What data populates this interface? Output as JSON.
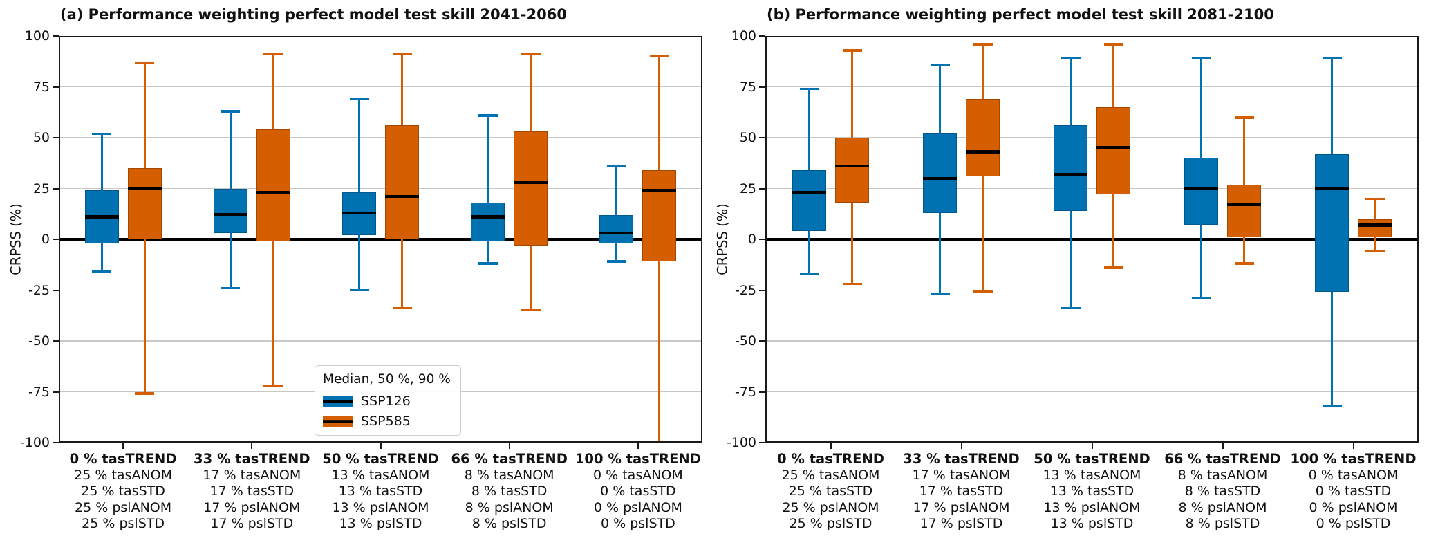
{
  "figure": {
    "background": "#ffffff"
  },
  "colors": {
    "ssp126": "#0072B2",
    "ssp585": "#D55E00",
    "median_line": "#000000",
    "zero_line": "#000000",
    "gridline": "#c8c8c8",
    "spine": "#1a1a1a"
  },
  "legend": {
    "title": "Median, 50 %, 90 %",
    "entries": [
      {
        "label": "SSP126",
        "color": "#0072B2"
      },
      {
        "label": "SSP585",
        "color": "#D55E00"
      }
    ]
  },
  "axes": {
    "ylabel": "CRPSS (%)",
    "yticks": [
      100,
      75,
      50,
      25,
      0,
      -25,
      -50,
      -75,
      -100
    ],
    "ylim": [
      -100,
      100
    ],
    "grid": "horizontal"
  },
  "group_labels": [
    [
      "0 % tasTREND",
      "25 % tasANOM",
      "25 % tasSTD",
      "25 % pslANOM",
      "25 % pslSTD"
    ],
    [
      "33 % tasTREND",
      "17 % tasANOM",
      "17 % tasSTD",
      "17 % pslANOM",
      "17 % pslSTD"
    ],
    [
      "50 % tasTREND",
      "13 % tasANOM",
      "13 % tasSTD",
      "13 % pslANOM",
      "13 % pslSTD"
    ],
    [
      "66 % tasTREND",
      "8 % tasANOM",
      "8 % tasSTD",
      "8 % pslANOM",
      "8 % pslSTD"
    ],
    [
      "100 % tasTREND",
      "0 % tasANOM",
      "0 % tasSTD",
      "0 % pslANOM",
      "0 % pslSTD"
    ]
  ],
  "chart_data": [
    {
      "panel": "a",
      "type": "box",
      "title": "(a) Performance weighting perfect model test skill 2041-2060",
      "ylabel": "CRPSS (%)",
      "ylim": [
        -100,
        100
      ],
      "categories": [
        "0 % tasTREND",
        "33 % tasTREND",
        "50 % tasTREND",
        "66 % tasTREND",
        "100 % tasTREND"
      ],
      "legend_position": "lower center-right inside panel",
      "series": [
        {
          "name": "SSP126",
          "color": "#0072B2",
          "boxes": [
            {
              "lo": -16,
              "q1": -2,
              "med": 11,
              "q3": 24,
              "hi": 52
            },
            {
              "lo": -24,
              "q1": 3,
              "med": 12,
              "q3": 25,
              "hi": 63
            },
            {
              "lo": -25,
              "q1": 2,
              "med": 13,
              "q3": 23,
              "hi": 69
            },
            {
              "lo": -12,
              "q1": -1,
              "med": 11,
              "q3": 18,
              "hi": 61
            },
            {
              "lo": -11,
              "q1": -2,
              "med": 3,
              "q3": 12,
              "hi": 36
            }
          ]
        },
        {
          "name": "SSP585",
          "color": "#D55E00",
          "boxes": [
            {
              "lo": -76,
              "q1": 0,
              "med": 25,
              "q3": 35,
              "hi": 87
            },
            {
              "lo": -72,
              "q1": -1,
              "med": 23,
              "q3": 54,
              "hi": 91
            },
            {
              "lo": -34,
              "q1": 0,
              "med": 21,
              "q3": 56,
              "hi": 91
            },
            {
              "lo": -35,
              "q1": -3,
              "med": 28,
              "q3": 53,
              "hi": 91
            },
            {
              "lo": -100,
              "q1": -11,
              "med": 24,
              "q3": 34,
              "hi": 90,
              "clipped_low": true
            }
          ]
        }
      ]
    },
    {
      "panel": "b",
      "type": "box",
      "title": "(b) Performance weighting perfect model test skill 2081-2100",
      "ylabel": "CRPSS (%)",
      "ylim": [
        -100,
        100
      ],
      "categories": [
        "0 % tasTREND",
        "33 % tasTREND",
        "50 % tasTREND",
        "66 % tasTREND",
        "100 % tasTREND"
      ],
      "series": [
        {
          "name": "SSP126",
          "color": "#0072B2",
          "boxes": [
            {
              "lo": -17,
              "q1": 4,
              "med": 23,
              "q3": 34,
              "hi": 74
            },
            {
              "lo": -27,
              "q1": 13,
              "med": 30,
              "q3": 52,
              "hi": 86
            },
            {
              "lo": -34,
              "q1": 14,
              "med": 32,
              "q3": 56,
              "hi": 89
            },
            {
              "lo": -29,
              "q1": 7,
              "med": 25,
              "q3": 40,
              "hi": 89
            },
            {
              "lo": -82,
              "q1": -26,
              "med": 25,
              "q3": 42,
              "hi": 89
            }
          ]
        },
        {
          "name": "SSP585",
          "color": "#D55E00",
          "boxes": [
            {
              "lo": -22,
              "q1": 18,
              "med": 36,
              "q3": 50,
              "hi": 93
            },
            {
              "lo": -26,
              "q1": 31,
              "med": 43,
              "q3": 69,
              "hi": 96
            },
            {
              "lo": -14,
              "q1": 22,
              "med": 45,
              "q3": 65,
              "hi": 96
            },
            {
              "lo": -12,
              "q1": 1,
              "med": 17,
              "q3": 27,
              "hi": 60
            },
            {
              "lo": -6,
              "q1": 1,
              "med": 7,
              "q3": 10,
              "hi": 20
            }
          ]
        }
      ]
    }
  ]
}
